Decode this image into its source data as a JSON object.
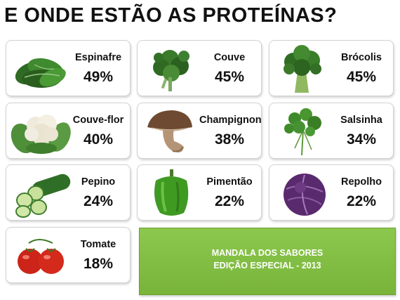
{
  "title": "E ONDE ESTÃO AS PROTEÍNAS?",
  "items": [
    {
      "name": "Espinafre",
      "percent": "49%",
      "icon": "spinach-image"
    },
    {
      "name": "Couve",
      "percent": "45%",
      "icon": "kale-image"
    },
    {
      "name": "Brócolis",
      "percent": "45%",
      "icon": "broccoli-image"
    },
    {
      "name": "Couve-flor",
      "percent": "40%",
      "icon": "cauliflower-image"
    },
    {
      "name": "Champignon",
      "percent": "38%",
      "icon": "mushroom-image"
    },
    {
      "name": "Salsinha",
      "percent": "34%",
      "icon": "parsley-image"
    },
    {
      "name": "Pepino",
      "percent": "24%",
      "icon": "cucumber-image"
    },
    {
      "name": "Pimentão",
      "percent": "22%",
      "icon": "green-pepper-image"
    },
    {
      "name": "Repolho",
      "percent": "22%",
      "icon": "red-cabbage-image"
    },
    {
      "name": "Tomate",
      "percent": "18%",
      "icon": "tomato-image"
    }
  ],
  "banner": {
    "line1": "MANDALA DOS SABORES",
    "line2": "EDIÇÃO ESPECIAL - 2013"
  },
  "colors": {
    "banner": "#8cc84e",
    "text": "#111111"
  }
}
